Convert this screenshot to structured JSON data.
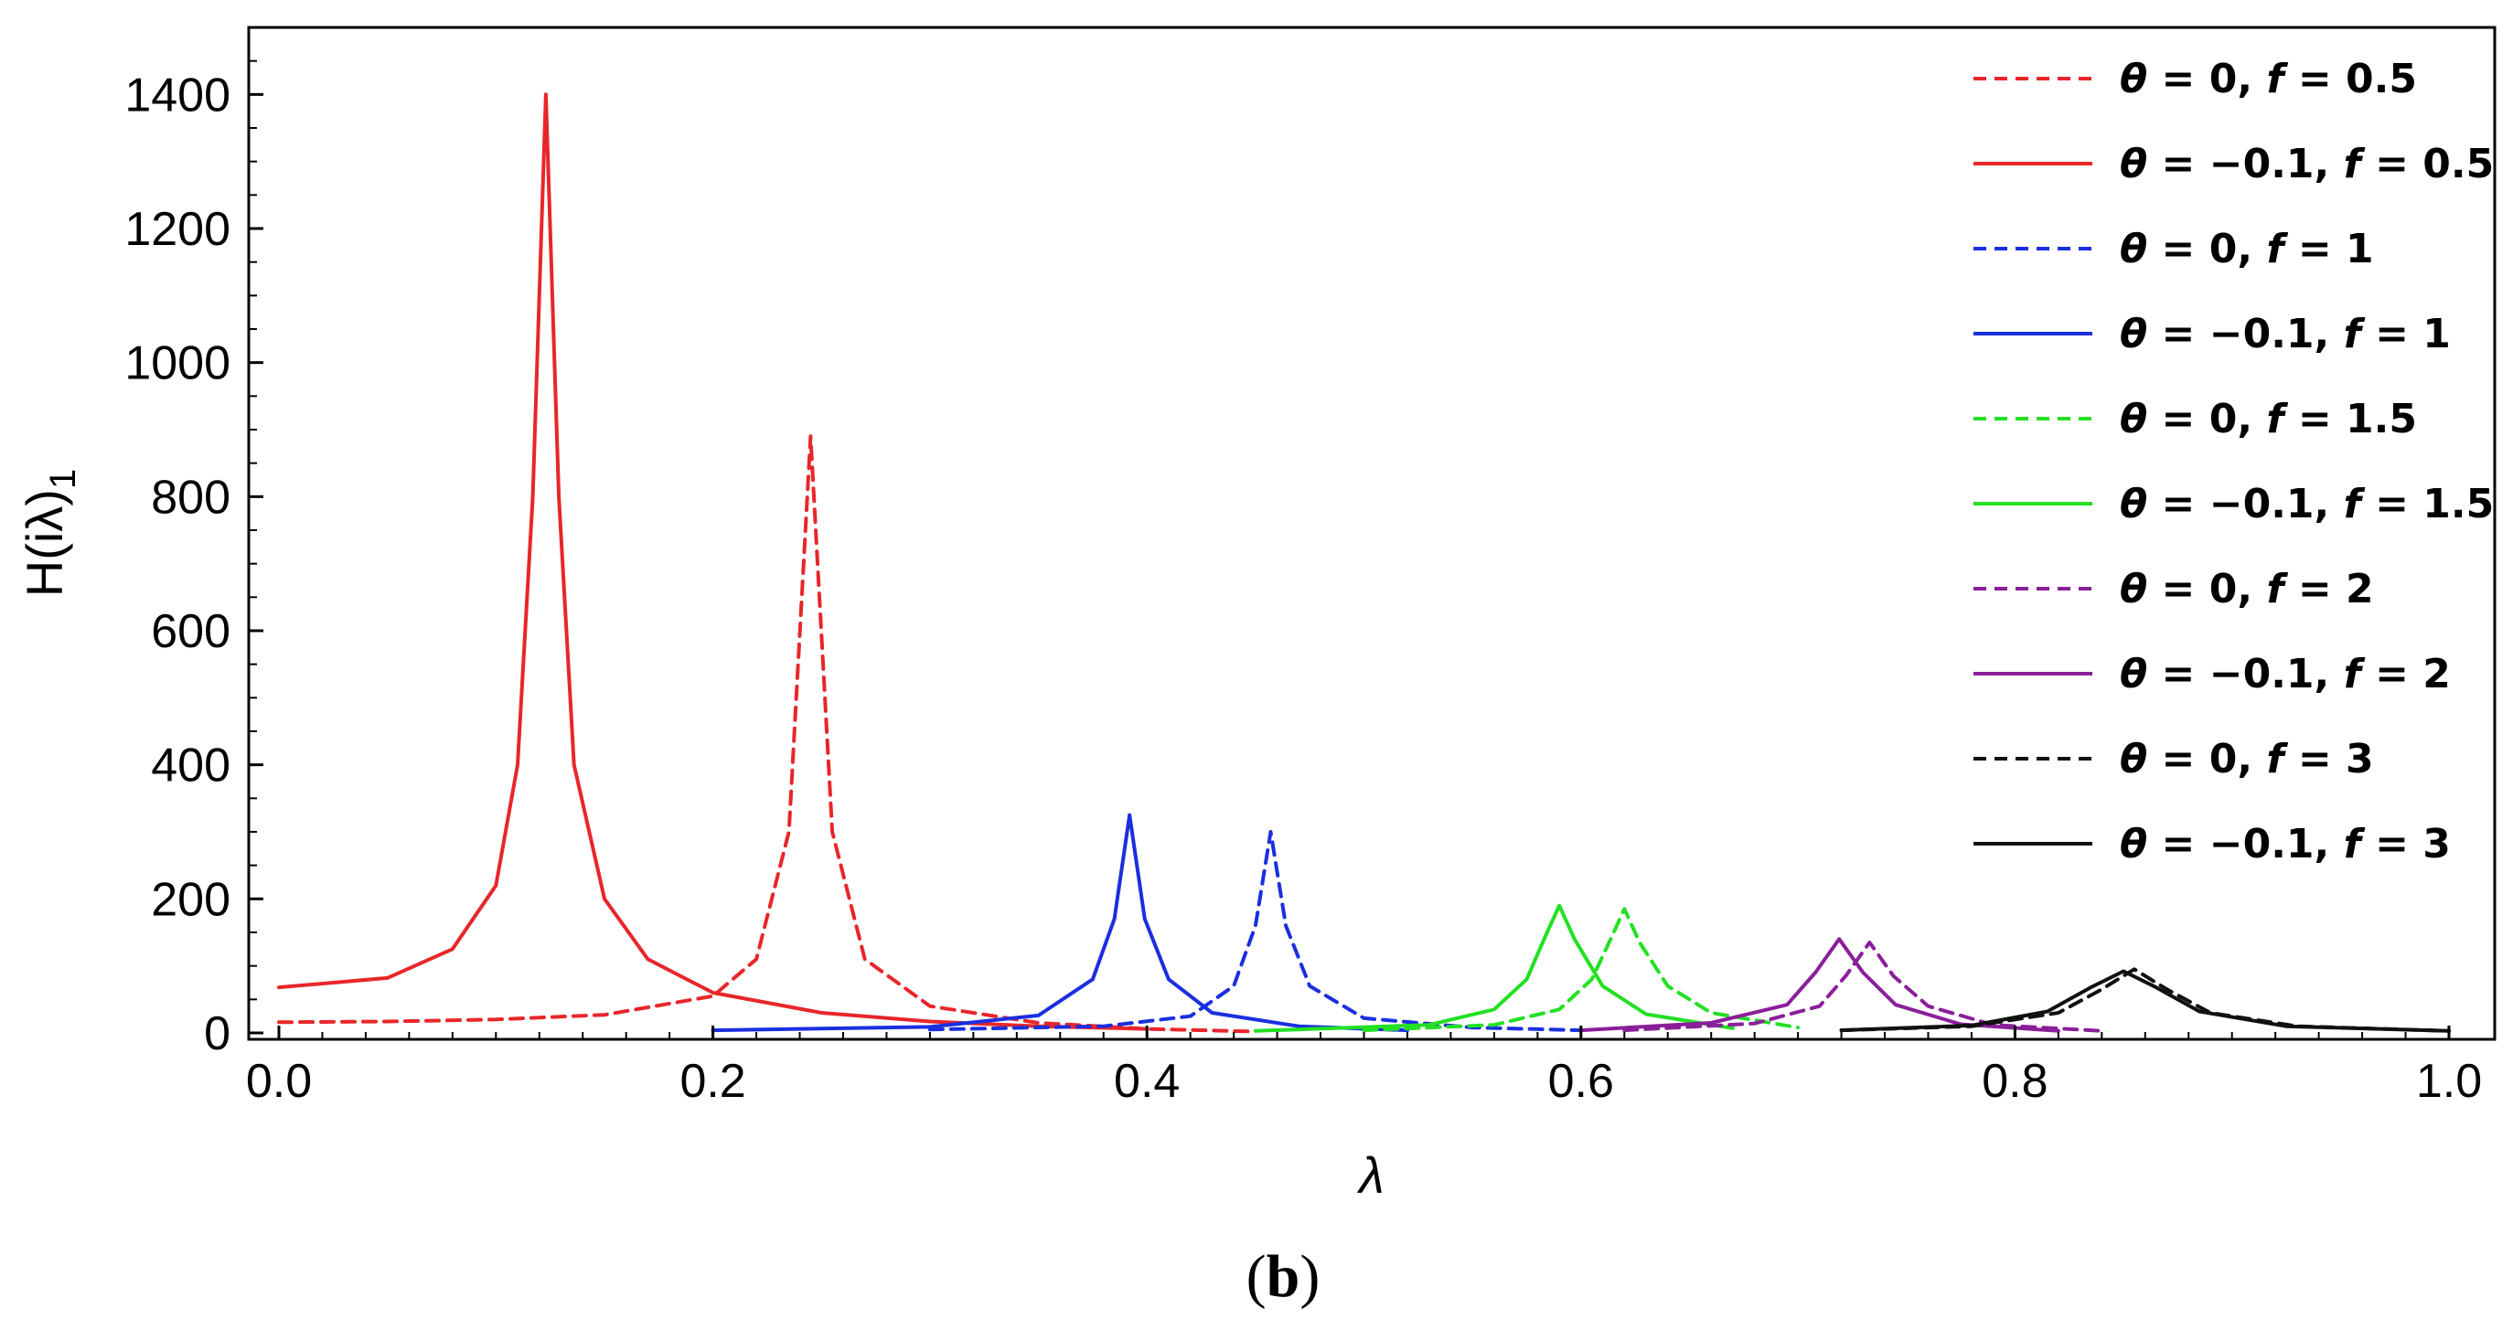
{
  "panel_label": "b",
  "chart_data": {
    "type": "line",
    "title": "",
    "xlabel": "λ",
    "ylabel": "H(iλ)",
    "ylabel_subscript": "1",
    "xlim": [
      0,
      1
    ],
    "ylim": [
      0,
      1500
    ],
    "x_ticks": [
      {
        "value": 0.0,
        "label": "0.0"
      },
      {
        "value": 0.2,
        "label": "0.2"
      },
      {
        "value": 0.4,
        "label": "0.4"
      },
      {
        "value": 0.6,
        "label": "0.6"
      },
      {
        "value": 0.8,
        "label": "0.8"
      },
      {
        "value": 1.0,
        "label": "1.0"
      }
    ],
    "y_ticks": [
      {
        "value": 0,
        "label": "0"
      },
      {
        "value": 200,
        "label": "200"
      },
      {
        "value": 400,
        "label": "400"
      },
      {
        "value": 600,
        "label": "600"
      },
      {
        "value": 800,
        "label": "800"
      },
      {
        "value": 1000,
        "label": "1000"
      },
      {
        "value": 1200,
        "label": "1200"
      },
      {
        "value": 1400,
        "label": "1400"
      }
    ],
    "grid": false,
    "legend_position": "top-right",
    "series": [
      {
        "name": "θ = 0, f = 0.5",
        "theta": "0",
        "f": "0.5",
        "color": "#e8262a",
        "dash": true,
        "x": [
          0,
          0.05,
          0.1,
          0.15,
          0.2,
          0.22,
          0.235,
          0.245,
          0.255,
          0.27,
          0.3,
          0.35,
          0.4,
          0.45
        ],
        "y": [
          16,
          17,
          20,
          27,
          55,
          110,
          300,
          890,
          300,
          110,
          40,
          15,
          6,
          2
        ]
      },
      {
        "name": "θ = −0.1, f = 0.5",
        "theta": "−0.1",
        "f": "0.5",
        "color": "#e8262a",
        "dash": false,
        "x": [
          0,
          0.05,
          0.08,
          0.1,
          0.11,
          0.117,
          0.123,
          0.129,
          0.136,
          0.15,
          0.17,
          0.2,
          0.25,
          0.3,
          0.35,
          0.4
        ],
        "y": [
          68,
          82,
          125,
          220,
          400,
          800,
          1400,
          800,
          400,
          200,
          110,
          60,
          30,
          17,
          10,
          6
        ]
      },
      {
        "name": "θ = 0, f = 1",
        "theta": "0",
        "f": "1",
        "color": "#1a2fe0",
        "dash": true,
        "x": [
          0.3,
          0.38,
          0.42,
          0.44,
          0.45,
          0.457,
          0.464,
          0.475,
          0.5,
          0.55,
          0.6
        ],
        "y": [
          5,
          10,
          25,
          70,
          160,
          300,
          160,
          70,
          22,
          8,
          4
        ]
      },
      {
        "name": "θ = −0.1, f = 1",
        "theta": "−0.1",
        "f": "1",
        "color": "#1a2fe0",
        "dash": false,
        "x": [
          0.2,
          0.3,
          0.35,
          0.375,
          0.385,
          0.392,
          0.399,
          0.41,
          0.43,
          0.47,
          0.52
        ],
        "y": [
          4,
          9,
          26,
          80,
          170,
          325,
          170,
          80,
          30,
          10,
          4
        ]
      },
      {
        "name": "θ = 0, f = 1.5",
        "theta": "0",
        "f": "1.5",
        "color": "#23e023",
        "dash": true,
        "x": [
          0.5,
          0.56,
          0.59,
          0.605,
          0.613,
          0.62,
          0.627,
          0.64,
          0.66,
          0.7
        ],
        "y": [
          4,
          12,
          35,
          80,
          135,
          185,
          135,
          70,
          30,
          8
        ]
      },
      {
        "name": "θ = −0.1, f = 1.5",
        "theta": "−0.1",
        "f": "1.5",
        "color": "#23e023",
        "dash": false,
        "x": [
          0.45,
          0.53,
          0.56,
          0.575,
          0.583,
          0.59,
          0.597,
          0.61,
          0.63,
          0.67
        ],
        "y": [
          3,
          12,
          35,
          80,
          140,
          190,
          140,
          70,
          28,
          7
        ]
      },
      {
        "name": "θ = 0, f = 2",
        "theta": "0",
        "f": "2",
        "color": "#8a1f9a",
        "dash": true,
        "x": [
          0.62,
          0.68,
          0.71,
          0.722,
          0.733,
          0.744,
          0.76,
          0.79,
          0.84
        ],
        "y": [
          4,
          14,
          40,
          85,
          135,
          85,
          40,
          12,
          3
        ]
      },
      {
        "name": "θ = −0.1, f = 2",
        "theta": "−0.1",
        "f": "2",
        "color": "#8a1f9a",
        "dash": false,
        "x": [
          0.6,
          0.66,
          0.695,
          0.708,
          0.719,
          0.73,
          0.745,
          0.775,
          0.82
        ],
        "y": [
          4,
          15,
          42,
          90,
          140,
          90,
          42,
          13,
          3
        ]
      },
      {
        "name": "θ = 0, f = 3",
        "theta": "0",
        "f": "3",
        "color": "#111111",
        "dash": true,
        "x": [
          0.72,
          0.78,
          0.82,
          0.84,
          0.855,
          0.87,
          0.89,
          0.93,
          1.0
        ],
        "y": [
          4,
          10,
          30,
          65,
          95,
          65,
          30,
          10,
          3
        ]
      },
      {
        "name": "θ = −0.1, f = 3",
        "theta": "−0.1",
        "f": "3",
        "color": "#111111",
        "dash": false,
        "x": [
          0.72,
          0.78,
          0.815,
          0.835,
          0.85,
          0.865,
          0.885,
          0.925,
          1.0
        ],
        "y": [
          4,
          11,
          32,
          68,
          92,
          68,
          32,
          10,
          3
        ]
      }
    ]
  }
}
